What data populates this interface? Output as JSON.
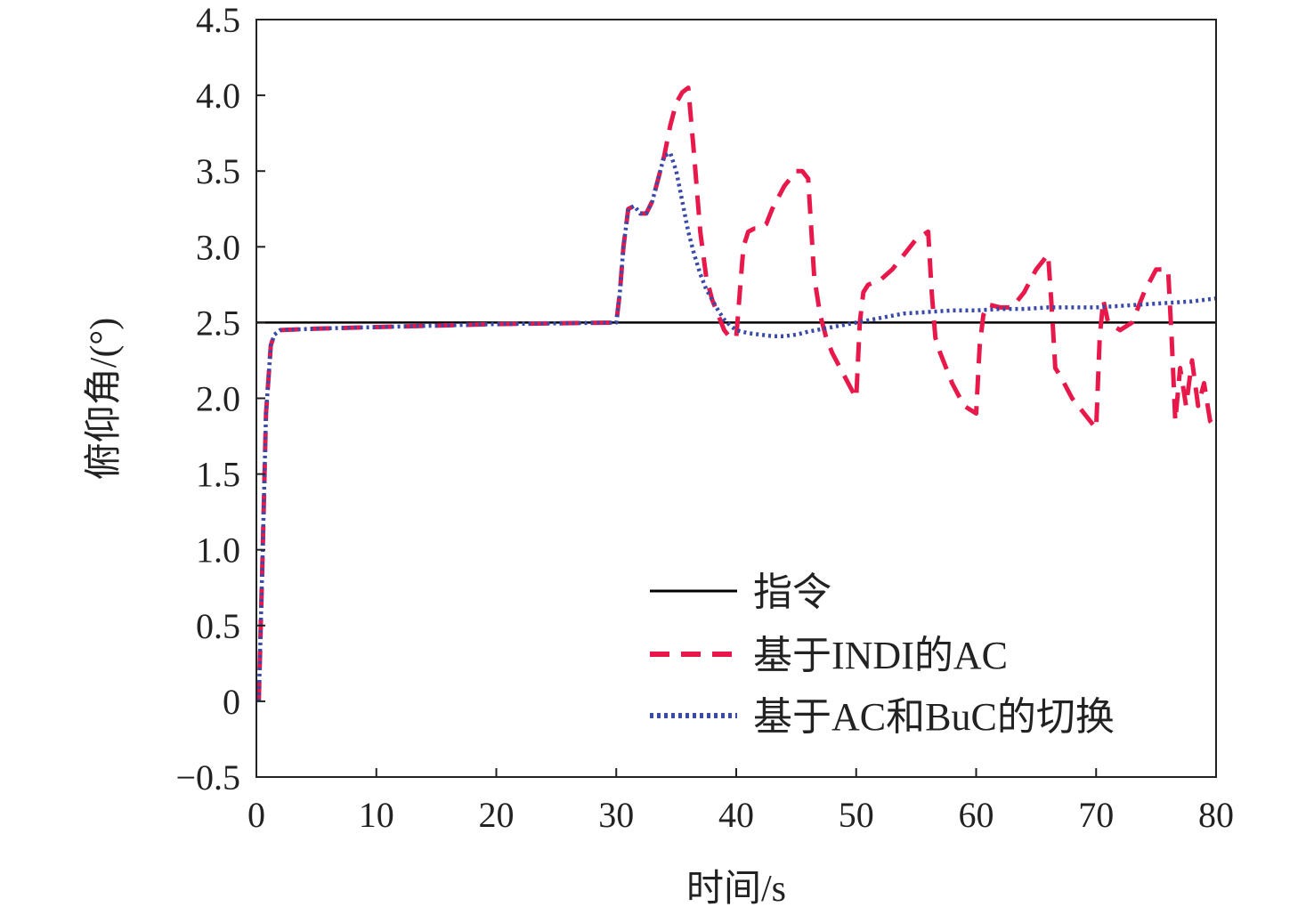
{
  "chart_data": {
    "type": "line",
    "xlabel": "时间/s",
    "ylabel": "俯仰角/(°)",
    "xlim": [
      0,
      80
    ],
    "ylim": [
      -0.5,
      4.5
    ],
    "xticks": [
      "0",
      "10",
      "20",
      "30",
      "40",
      "50",
      "60",
      "70",
      "80"
    ],
    "yticks": [
      "−0.5",
      "0",
      "0.5",
      "1.0",
      "1.5",
      "2.0",
      "2.5",
      "3.0",
      "3.5",
      "4.0",
      "4.5"
    ],
    "grid": false,
    "legend_position": "lower-right",
    "series": [
      {
        "name": "指令",
        "color": "#000000",
        "style": "solid",
        "x": [
          0,
          80
        ],
        "y": [
          2.5,
          2.5
        ]
      },
      {
        "name": "基于INDI的AC",
        "color": "#e8194a",
        "style": "dashed",
        "x": [
          0.2,
          0.5,
          0.8,
          1.2,
          1.5,
          2,
          5,
          10,
          20,
          30,
          30.3,
          30.6,
          31,
          31.5,
          32,
          32.5,
          33,
          33.5,
          34,
          34.5,
          35,
          35.5,
          36,
          36.5,
          37,
          37.5,
          38,
          38.5,
          39,
          39.5,
          40,
          40.3,
          40.6,
          41,
          41.5,
          42,
          42.5,
          43,
          44,
          45,
          45.5,
          46,
          46.5,
          47,
          47.5,
          48,
          49,
          50,
          50.3,
          50.6,
          51,
          52,
          53,
          54,
          55,
          56,
          56.3,
          56.6,
          57,
          58,
          59,
          60,
          60.3,
          60.6,
          61,
          62,
          63,
          64,
          65,
          66,
          66.3,
          66.6,
          67,
          68,
          69,
          70,
          70.3,
          70.6,
          71,
          72,
          73,
          74,
          75,
          76,
          76.3,
          76.6,
          77,
          77.5,
          78,
          78.5,
          79,
          79.5,
          80
        ],
        "y": [
          0,
          0.9,
          1.9,
          2.35,
          2.42,
          2.45,
          2.46,
          2.47,
          2.49,
          2.5,
          2.7,
          3.0,
          3.25,
          3.27,
          3.22,
          3.22,
          3.3,
          3.45,
          3.6,
          3.8,
          3.95,
          4.02,
          4.05,
          3.6,
          3.1,
          2.8,
          2.65,
          2.55,
          2.45,
          2.4,
          2.4,
          2.7,
          3.0,
          3.1,
          3.12,
          3.12,
          3.15,
          3.25,
          3.4,
          3.5,
          3.5,
          3.45,
          2.8,
          2.55,
          2.4,
          2.3,
          2.15,
          2.0,
          2.5,
          2.7,
          2.75,
          2.78,
          2.85,
          2.95,
          3.05,
          3.1,
          2.7,
          2.4,
          2.3,
          2.1,
          1.95,
          1.9,
          2.35,
          2.55,
          2.62,
          2.6,
          2.6,
          2.7,
          2.85,
          2.95,
          2.6,
          2.2,
          2.15,
          2.0,
          1.9,
          1.8,
          2.4,
          2.65,
          2.5,
          2.45,
          2.5,
          2.7,
          2.85,
          2.85,
          2.4,
          1.85,
          2.2,
          1.95,
          2.25,
          1.95,
          2.1,
          1.85,
          1.8
        ]
      },
      {
        "name": "基于AC和BuC的切换",
        "color": "#3a4aa8",
        "style": "dotted",
        "x": [
          0.2,
          0.5,
          0.8,
          1.2,
          1.5,
          2,
          5,
          10,
          20,
          30,
          30.3,
          30.6,
          31,
          31.5,
          32,
          32.5,
          33,
          33.5,
          34,
          34.5,
          35,
          35.5,
          36,
          36.5,
          37,
          37.5,
          38,
          38.5,
          39,
          39.5,
          40,
          41,
          42,
          43,
          44,
          45,
          46,
          48,
          50,
          52,
          54,
          56,
          58,
          60,
          62,
          64,
          66,
          68,
          70,
          72,
          74,
          76,
          78,
          80
        ],
        "y": [
          0,
          0.9,
          1.9,
          2.35,
          2.42,
          2.45,
          2.46,
          2.47,
          2.49,
          2.5,
          2.7,
          3.0,
          3.25,
          3.27,
          3.22,
          3.22,
          3.3,
          3.45,
          3.6,
          3.62,
          3.5,
          3.3,
          3.1,
          2.95,
          2.82,
          2.72,
          2.65,
          2.58,
          2.52,
          2.48,
          2.45,
          2.43,
          2.42,
          2.41,
          2.41,
          2.42,
          2.44,
          2.47,
          2.5,
          2.53,
          2.56,
          2.57,
          2.58,
          2.58,
          2.59,
          2.59,
          2.6,
          2.6,
          2.6,
          2.61,
          2.62,
          2.63,
          2.64,
          2.66
        ]
      }
    ]
  }
}
